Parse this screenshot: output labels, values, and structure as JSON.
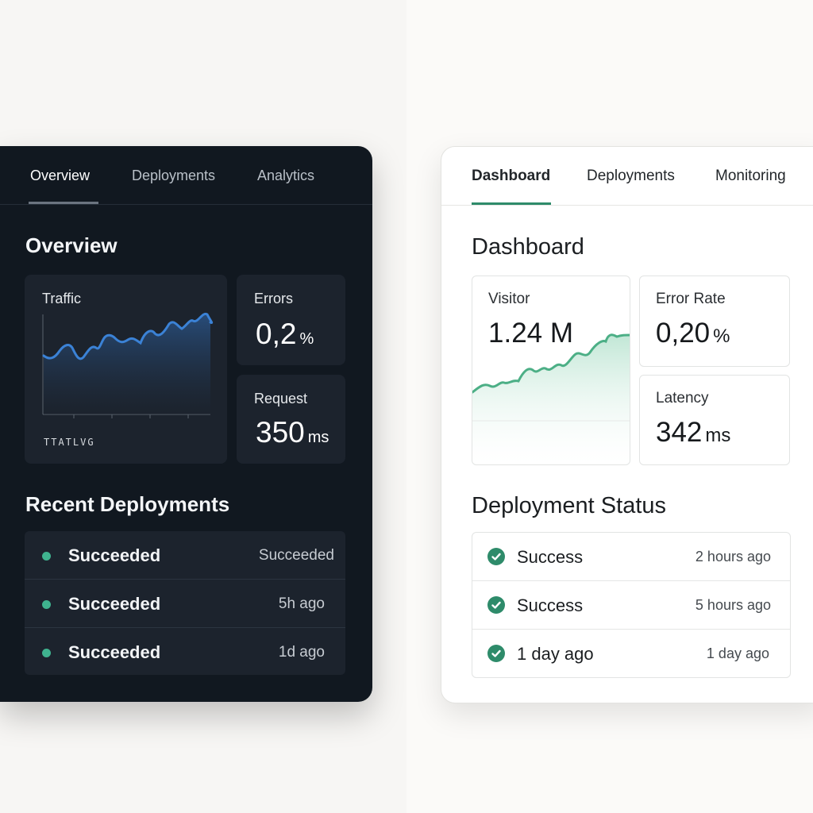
{
  "dark_panel": {
    "tabs": [
      {
        "label": "Overview",
        "active": true
      },
      {
        "label": "Deployments",
        "active": false
      },
      {
        "label": "Analytics",
        "active": false
      }
    ],
    "overview_title": "Overview",
    "traffic": {
      "label": "Traffic",
      "footer": "TTATLVG"
    },
    "errors": {
      "label": "Errors",
      "value": "0,2",
      "unit": "%"
    },
    "request": {
      "label": "Request",
      "value": "350",
      "unit": "ms"
    },
    "deployments_title": "Recent Deployments",
    "deployments": [
      {
        "status": "Succeeded",
        "time": "Succeeded"
      },
      {
        "status": "Succeeded",
        "time": "5h ago"
      },
      {
        "status": "Succeeded",
        "time": "1d ago"
      }
    ],
    "colors": {
      "background": "#111820",
      "card": "#1c232d",
      "line": "#3b82d6",
      "status_dot": "#3fb38f"
    }
  },
  "light_panel": {
    "tabs": [
      {
        "label": "Dashboard",
        "active": true
      },
      {
        "label": "Deployments",
        "active": false
      },
      {
        "label": "Monitoring",
        "active": false
      }
    ],
    "dashboard_title": "Dashboard",
    "visitor": {
      "label": "Visitor",
      "value": "1.24 M"
    },
    "error_rate": {
      "label": "Error Rate",
      "value": "0,20",
      "unit": "%"
    },
    "latency": {
      "label": "Latency",
      "value": "342",
      "unit": "ms"
    },
    "deployments_title": "Deployment Status",
    "deployments": [
      {
        "status": "Success",
        "time": "2 hours ago",
        "icon": "check-circle-icon"
      },
      {
        "status": "Success",
        "time": "5 hours ago",
        "icon": "check-circle-icon"
      },
      {
        "status": "1 day ago",
        "time": "1 day ago",
        "icon": "check-circle-icon"
      }
    ],
    "colors": {
      "accent": "#2e8b6a",
      "line": "#4caf86"
    }
  }
}
